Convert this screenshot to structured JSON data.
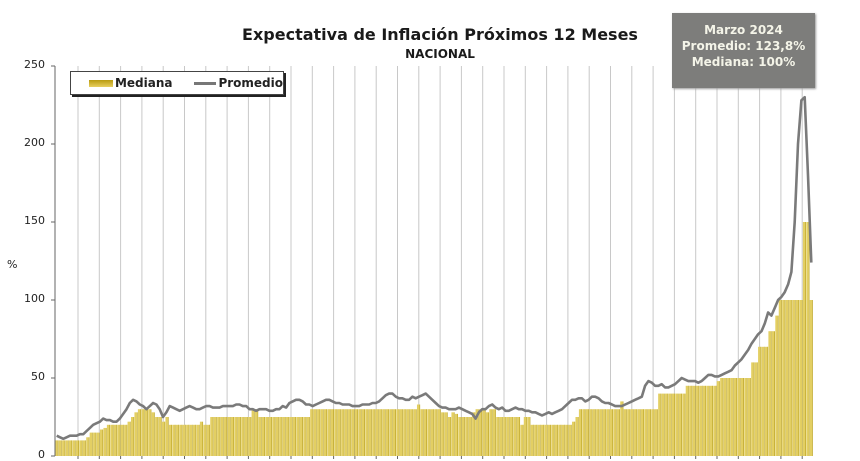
{
  "header": {
    "title": "Expectativa de Inflación Próximos 12 Meses",
    "subtitle": "NACIONAL"
  },
  "tooltip": {
    "line1": "Marzo 2024",
    "line2": "Promedio: 123,8%",
    "line3": "Mediana: 100%"
  },
  "legend": {
    "bar_label": "Mediana",
    "line_label": "Promedio"
  },
  "axis": {
    "y_title": "%",
    "y_ticks": [
      "0",
      "50",
      "100",
      "150",
      "200",
      "250"
    ]
  },
  "colors": {
    "bar": "#e3cf63",
    "bar_edge": "#b8a020",
    "line": "#7a7a7a",
    "grid": "#c8c8c8",
    "tooltip_bg": "#7d7d7b"
  },
  "chart_data": {
    "type": "bar+line",
    "title": "Expectativa de Inflación Próximos 12 Meses",
    "subtitle": "NACIONAL",
    "xlabel": "",
    "ylabel": "%",
    "ylim": [
      0,
      250
    ],
    "y_ticks": [
      0,
      50,
      100,
      150,
      200,
      250
    ],
    "grid": {
      "vertical": true,
      "horizontal": false
    },
    "legend_position": "top-left",
    "annotation": {
      "text": [
        "Marzo 2024",
        "Promedio: 123,8%",
        "Mediana: 100%"
      ],
      "position": "top-right"
    },
    "series": [
      {
        "name": "Mediana",
        "type": "bar",
        "values": [
          10,
          10,
          10,
          10,
          10,
          10,
          10,
          10,
          10,
          12,
          15,
          15,
          15,
          17,
          18,
          20,
          20,
          20,
          20,
          20,
          20,
          22,
          25,
          28,
          30,
          30,
          30,
          30,
          28,
          25,
          25,
          22,
          25,
          20,
          20,
          20,
          20,
          20,
          20,
          20,
          20,
          20,
          22,
          20,
          20,
          25,
          25,
          25,
          25,
          25,
          25,
          25,
          25,
          25,
          25,
          25,
          25,
          30,
          30,
          25,
          25,
          25,
          25,
          25,
          25,
          25,
          25,
          25,
          25,
          25,
          25,
          25,
          25,
          25,
          30,
          30,
          30,
          30,
          30,
          30,
          30,
          30,
          30,
          30,
          30,
          30,
          30,
          30,
          30,
          30,
          30,
          30,
          30,
          30,
          30,
          30,
          30,
          30,
          30,
          30,
          30,
          30,
          30,
          30,
          30,
          33,
          30,
          30,
          30,
          30,
          30,
          30,
          28,
          28,
          25,
          28,
          27,
          25,
          25,
          25,
          25,
          28,
          30,
          30,
          30,
          28,
          30,
          30,
          25,
          25,
          25,
          25,
          25,
          25,
          25,
          20,
          25,
          25,
          20,
          20,
          20,
          20,
          20,
          20,
          20,
          20,
          20,
          20,
          20,
          20,
          22,
          25,
          30,
          30,
          30,
          30,
          30,
          30,
          30,
          30,
          30,
          30,
          30,
          30,
          35,
          30,
          30,
          30,
          30,
          30,
          30,
          30,
          30,
          30,
          30,
          40,
          40,
          40,
          40,
          40,
          40,
          40,
          40,
          45,
          45,
          45,
          45,
          45,
          45,
          45,
          45,
          45,
          48,
          50,
          50,
          50,
          50,
          50,
          50,
          50,
          50,
          50,
          60,
          60,
          70,
          70,
          70,
          80,
          80,
          90,
          100,
          100,
          100,
          100,
          100,
          100,
          100,
          150,
          150,
          100
        ]
      },
      {
        "name": "Promedio",
        "type": "line",
        "values": [
          13,
          12,
          11,
          12,
          13,
          13,
          13,
          14,
          14,
          16,
          18,
          20,
          21,
          22,
          24,
          23,
          23,
          22,
          22,
          24,
          27,
          30,
          34,
          36,
          35,
          33,
          32,
          30,
          32,
          34,
          33,
          30,
          25,
          28,
          32,
          31,
          30,
          29,
          30,
          31,
          32,
          31,
          30,
          30,
          31,
          32,
          32,
          31,
          31,
          31,
          32,
          32,
          32,
          32,
          33,
          33,
          32,
          32,
          30,
          30,
          29,
          30,
          30,
          30,
          29,
          29,
          30,
          30,
          32,
          31,
          34,
          35,
          36,
          36,
          35,
          33,
          33,
          32,
          33,
          34,
          35,
          36,
          36,
          35,
          34,
          34,
          33,
          33,
          33,
          32,
          32,
          32,
          33,
          33,
          33,
          34,
          34,
          35,
          37,
          39,
          40,
          40,
          38,
          37,
          37,
          36,
          36,
          38,
          37,
          38,
          39,
          40,
          38,
          36,
          34,
          32,
          31,
          31,
          30,
          30,
          30,
          31,
          30,
          29,
          28,
          27,
          24,
          28,
          30,
          30,
          32,
          33,
          31,
          30,
          31,
          29,
          29,
          30,
          31,
          30,
          30,
          29,
          29,
          28,
          28,
          27,
          26,
          27,
          28,
          27,
          28,
          29,
          30,
          32,
          34,
          36,
          36,
          37,
          37,
          35,
          36,
          38,
          38,
          37,
          35,
          34,
          34,
          33,
          32,
          32,
          32,
          33,
          34,
          35,
          36,
          37,
          38,
          45,
          48,
          47,
          45,
          45,
          46,
          44,
          44,
          45,
          46,
          48,
          50,
          49,
          48,
          48,
          48,
          47,
          48,
          50,
          52,
          52,
          51,
          51,
          52,
          53,
          54,
          55,
          58,
          60,
          62,
          65,
          68,
          72,
          75,
          78,
          80,
          85,
          92,
          90,
          95,
          100,
          102,
          105,
          110,
          118,
          150,
          200,
          228,
          230,
          180,
          124
        ]
      }
    ]
  }
}
